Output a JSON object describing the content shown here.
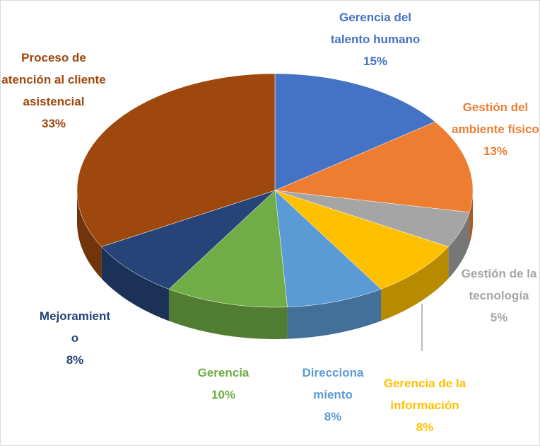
{
  "chart_data": {
    "type": "pie",
    "categories": [
      "Gerencia del talento humano",
      "Gestión del ambiente físico",
      "Gestión de la tecnología",
      "Gerencia de la información",
      "Direccionamiento",
      "Gerencia",
      "Mejoramiento",
      "Proceso de atención al cliente asistencial"
    ],
    "values": [
      15,
      13,
      5,
      8,
      8,
      10,
      8,
      33
    ],
    "value_labels": [
      "15%",
      "13%",
      "5%",
      "8%",
      "8%",
      "10%",
      "8%",
      "33%"
    ],
    "colors": [
      "#4472c4",
      "#ed7d31",
      "#a5a5a5",
      "#ffc000",
      "#5b9bd5",
      "#70ad47",
      "#264478",
      "#9e480e"
    ]
  }
}
